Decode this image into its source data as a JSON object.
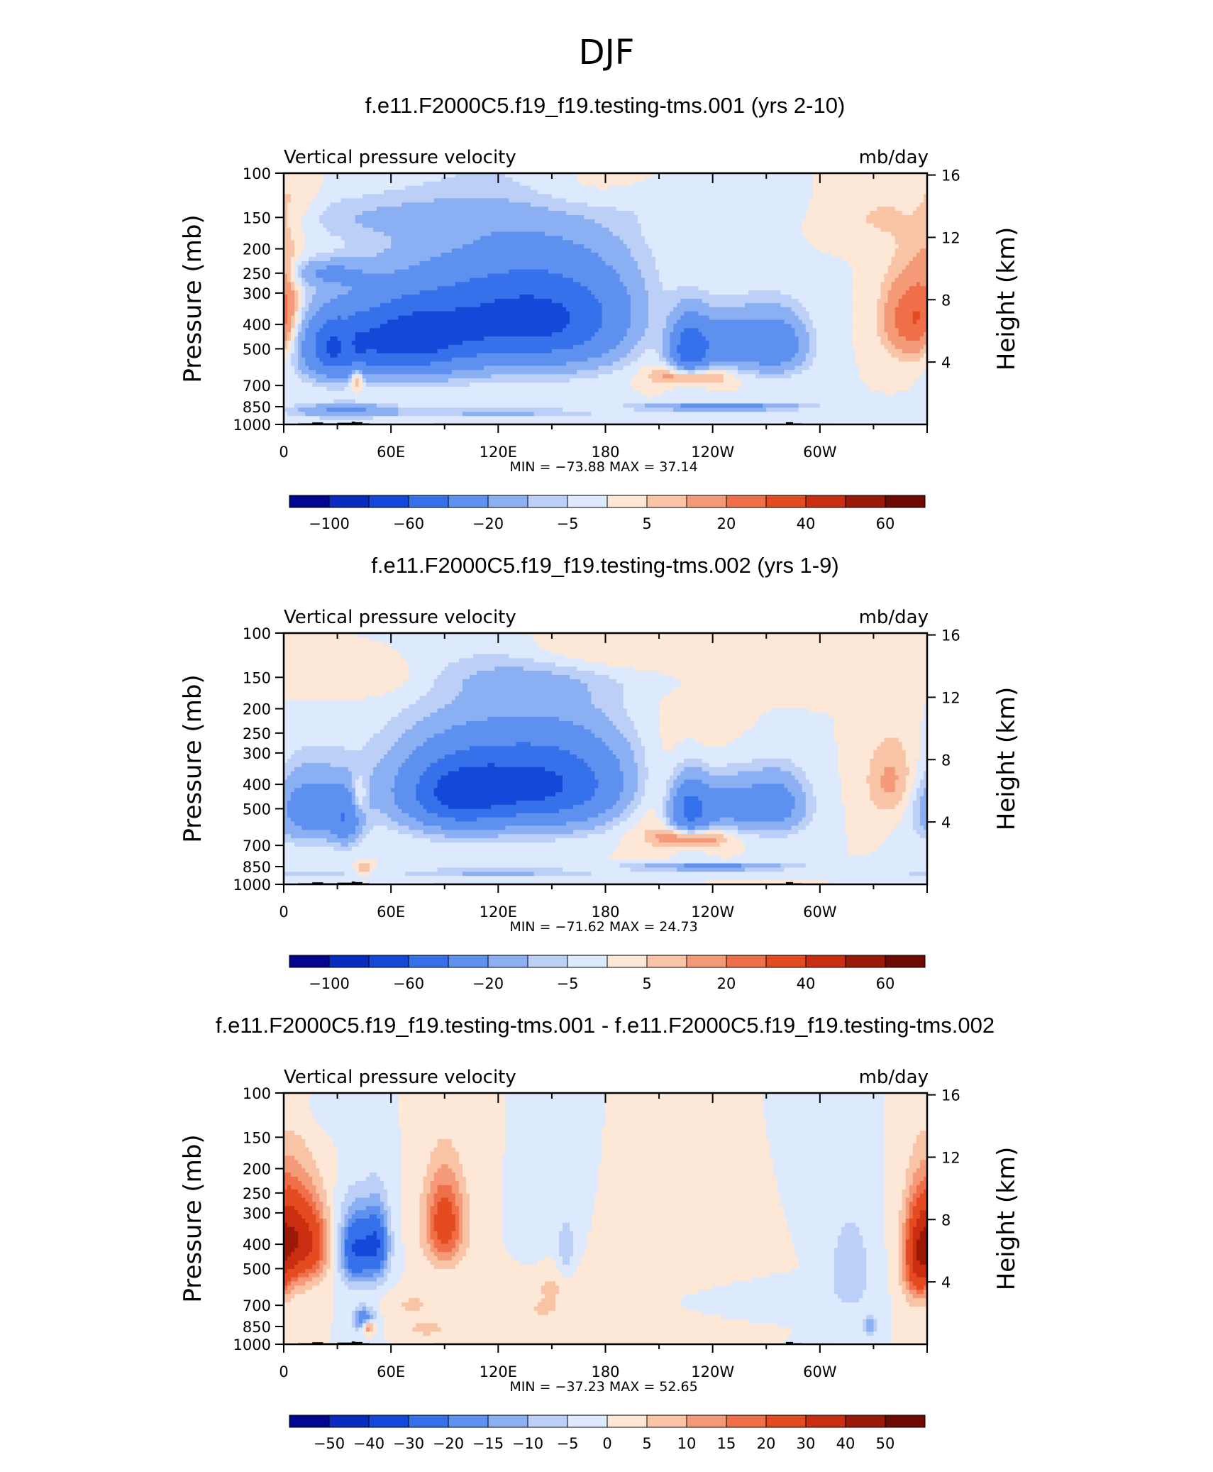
{
  "figure_title": "DJF",
  "colors": {
    "abs_palette": [
      "#04078e",
      "#0a2bbf",
      "#1448d8",
      "#3571ea",
      "#5d90ef",
      "#8aaff2",
      "#bccff7",
      "#dde9fc",
      "#fde7d6",
      "#f9c3a6",
      "#f49a78",
      "#ef6f48",
      "#e44b21",
      "#c92e10",
      "#9b1a07",
      "#6d0a02"
    ],
    "diff_palette": [
      "#04078e",
      "#0a2bbf",
      "#1448d8",
      "#3571ea",
      "#5d90ef",
      "#8aaff2",
      "#bccff7",
      "#dde9fc",
      "#fde7d6",
      "#f9c3a6",
      "#f49a78",
      "#ef6f48",
      "#e44b21",
      "#c92e10",
      "#9b1a07",
      "#6d0a02"
    ]
  },
  "chart_data": [
    {
      "type": "contour",
      "title": "f.e11.F2000C5.f19_f19.testing-tms.001 (yrs 2-10)",
      "subtitle_left": "Vertical pressure velocity",
      "subtitle_right": "mb/day",
      "ylabel": "Pressure (mb)",
      "ylabel_right": "Height (km)",
      "y_ticks": [
        "100",
        "150",
        "200",
        "250",
        "300",
        "400",
        "500",
        "700",
        "850",
        "1000"
      ],
      "y_right_ticks": [
        "16",
        "12",
        "8",
        "4"
      ],
      "x_ticks": [
        "0",
        "60E",
        "120E",
        "180",
        "120W",
        "60W"
      ],
      "min_max": "MIN = −73.88   MAX =   37.14",
      "colorbar_labels": [
        "−100",
        "−60",
        "−20",
        "−5",
        "5",
        "20",
        "40",
        "60"
      ],
      "field": {
        "bg": 0,
        "blobs": [
          [
            -70,
            140,
            380,
            50,
            130
          ],
          [
            -55,
            65,
            470,
            25,
            110
          ],
          [
            -45,
            28,
            500,
            12,
            100
          ],
          [
            -55,
            227,
            500,
            8,
            100
          ],
          [
            -30,
            248,
            470,
            12,
            90
          ],
          [
            -35,
            275,
            480,
            12,
            90
          ],
          [
            -30,
            245,
            850,
            30,
            20
          ],
          [
            -8,
            60,
            150,
            50,
            20
          ],
          [
            -6,
            200,
            130,
            40,
            20
          ],
          [
            -18,
            25,
            250,
            15,
            20
          ],
          [
            -22,
            34,
            880,
            20,
            40
          ],
          [
            -12,
            120,
            900,
            40,
            25
          ],
          [
            22,
            210,
            400,
            28,
            130
          ],
          [
            25,
            228,
            640,
            14,
            40
          ],
          [
            18,
            35,
            480,
            3,
            60
          ],
          [
            25,
            41,
            650,
            2.5,
            50
          ],
          [
            12,
            0,
            330,
            6,
            120
          ],
          [
            28,
            350,
            380,
            10,
            100
          ],
          [
            4,
            10,
            130,
            8,
            30
          ],
          [
            10,
            170,
            120,
            30,
            25
          ],
          [
            7,
            335,
            150,
            20,
            25
          ]
        ]
      }
    },
    {
      "type": "contour",
      "title": "f.e11.F2000C5.f19_f19.testing-tms.002 (yrs 1-9)",
      "subtitle_left": "Vertical pressure velocity",
      "subtitle_right": "mb/day",
      "ylabel": "Pressure (mb)",
      "ylabel_right": "Height (km)",
      "y_ticks": [
        "100",
        "150",
        "200",
        "250",
        "300",
        "400",
        "500",
        "700",
        "850",
        "1000"
      ],
      "y_right_ticks": [
        "16",
        "12",
        "8",
        "4"
      ],
      "x_ticks": [
        "0",
        "60E",
        "120E",
        "180",
        "120W",
        "60W"
      ],
      "min_max": "MIN = −71.62   MAX =   24.73",
      "colorbar_labels": [
        "−100",
        "−60",
        "−20",
        "−5",
        "5",
        "20",
        "40",
        "60"
      ],
      "field": {
        "bg": 0,
        "blobs": [
          [
            -68,
            140,
            400,
            45,
            120
          ],
          [
            -35,
            95,
            450,
            18,
            100
          ],
          [
            -30,
            15,
            500,
            14,
            110
          ],
          [
            -28,
            35,
            550,
            6,
            90
          ],
          [
            -50,
            227,
            500,
            8,
            100
          ],
          [
            -28,
            248,
            480,
            12,
            90
          ],
          [
            -30,
            275,
            480,
            12,
            90
          ],
          [
            -25,
            240,
            850,
            30,
            20
          ],
          [
            -8,
            140,
            150,
            45,
            20
          ],
          [
            -10,
            10,
            900,
            18,
            20
          ],
          [
            -12,
            120,
            900,
            40,
            25
          ],
          [
            22,
            210,
            420,
            28,
            130
          ],
          [
            24,
            228,
            650,
            14,
            40
          ],
          [
            15,
            42,
            450,
            3,
            60
          ],
          [
            12,
            45,
            870,
            3,
            30
          ],
          [
            12,
            340,
            390,
            10,
            100
          ],
          [
            6,
            50,
            150,
            30,
            20
          ],
          [
            8,
            170,
            120,
            30,
            25
          ],
          [
            5,
            290,
            130,
            20,
            25
          ]
        ]
      }
    },
    {
      "type": "contour",
      "title": "f.e11.F2000C5.f19_f19.testing-tms.001 - f.e11.F2000C5.f19_f19.testing-tms.002",
      "subtitle_left": "Vertical pressure velocity",
      "subtitle_right": "mb/day",
      "ylabel": "Pressure (mb)",
      "ylabel_right": "Height (km)",
      "y_ticks": [
        "100",
        "150",
        "200",
        "250",
        "300",
        "400",
        "500",
        "700",
        "850",
        "1000"
      ],
      "y_right_ticks": [
        "16",
        "12",
        "8",
        "4"
      ],
      "x_ticks": [
        "0",
        "60E",
        "120E",
        "180",
        "120W",
        "60W"
      ],
      "min_max": "MIN = −37.23   MAX =   52.65",
      "colorbar_labels": [
        "−50",
        "−40",
        "−30",
        "−20",
        "−15",
        "−10",
        "−5",
        "0",
        "5",
        "10",
        "15",
        "20",
        "30",
        "40",
        "50"
      ],
      "field": {
        "bg": 0,
        "blobs": [
          [
            35,
            6,
            380,
            8,
            120
          ],
          [
            15,
            18,
            400,
            6,
            100
          ],
          [
            -30,
            40,
            420,
            6,
            100
          ],
          [
            -28,
            52,
            400,
            5,
            100
          ],
          [
            -25,
            45,
            800,
            4,
            60
          ],
          [
            25,
            47,
            850,
            2.5,
            40
          ],
          [
            25,
            90,
            330,
            8,
            100
          ],
          [
            -5,
            140,
            350,
            5,
            80
          ],
          [
            -8,
            158,
            420,
            4,
            100
          ],
          [
            5,
            150,
            600,
            10,
            80
          ],
          [
            4,
            200,
            600,
            30,
            80
          ],
          [
            -3,
            250,
            650,
            40,
            50
          ],
          [
            -10,
            317,
            500,
            8,
            150
          ],
          [
            -15,
            328,
            850,
            3,
            50
          ],
          [
            30,
            355,
            450,
            6,
            140
          ],
          [
            6,
            72,
            700,
            10,
            60
          ],
          [
            5,
            145,
            730,
            8,
            40
          ],
          [
            8,
            80,
            870,
            8,
            40
          ],
          [
            -2,
            15,
            120,
            10,
            20
          ]
        ]
      }
    }
  ]
}
